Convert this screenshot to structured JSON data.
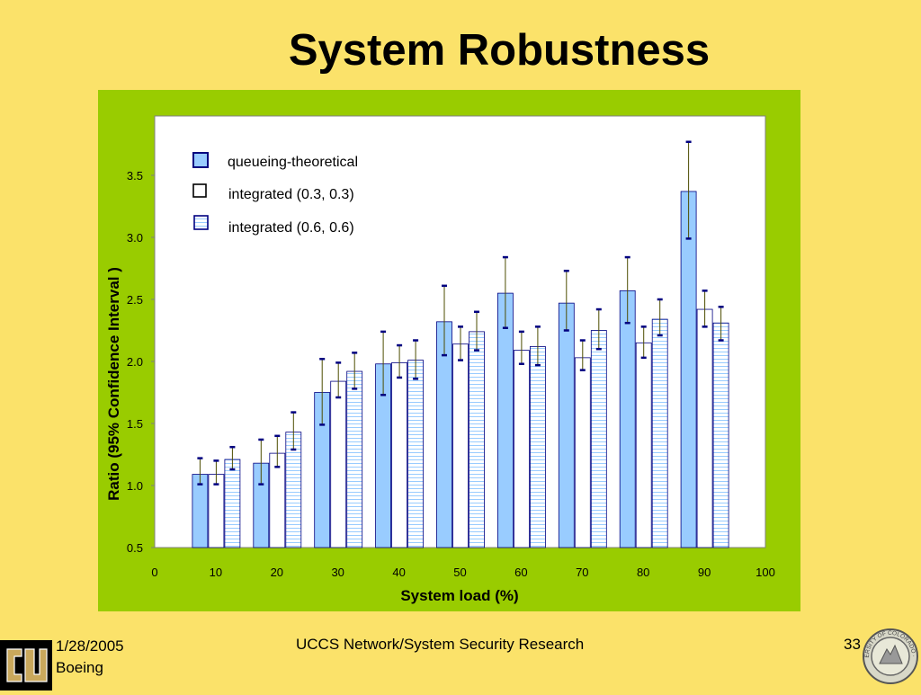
{
  "slide": {
    "title": "System Robustness",
    "footer_date": "1/28/2005",
    "footer_org": "Boeing",
    "footer_center": "UCCS Network/System Security Research",
    "page_number": "33",
    "seal_text": "UNIVERSITY OF COLORADO · 1876"
  },
  "colors": {
    "background": "#fbe26a",
    "panel": "#99cc00",
    "series_fill": [
      "#99ccff",
      "#ffffff",
      "#ffffff"
    ],
    "bar_stroke": "#000080",
    "error_bar": "#4d4d00",
    "error_cap": "#000080"
  },
  "chart_data": {
    "type": "bar",
    "xlabel": "System load (%)",
    "ylabel": "Ratio (95% Confidence Interval )",
    "ylim": [
      0.5,
      3.9
    ],
    "yticks": [
      "0.5",
      "1.0",
      "1.5",
      "2.0",
      "2.5",
      "3.0",
      "3.5"
    ],
    "xlim": [
      0,
      100
    ],
    "xticks": [
      "0",
      "10",
      "20",
      "30",
      "40",
      "50",
      "60",
      "70",
      "80",
      "90",
      "100"
    ],
    "categories": [
      10,
      20,
      30,
      40,
      50,
      60,
      70,
      80,
      90
    ],
    "series": [
      {
        "name": "queueing-theoretical",
        "values": [
          1.09,
          1.18,
          1.75,
          1.98,
          2.32,
          2.55,
          2.47,
          2.57,
          3.37
        ],
        "err_low": [
          1.01,
          1.01,
          1.49,
          1.73,
          2.05,
          2.27,
          2.25,
          2.31,
          2.99
        ],
        "err_high": [
          1.22,
          1.37,
          2.02,
          2.24,
          2.61,
          2.84,
          2.73,
          2.84,
          3.77
        ]
      },
      {
        "name": "integrated (0.3, 0.3)",
        "values": [
          1.09,
          1.26,
          1.84,
          1.99,
          2.14,
          2.09,
          2.03,
          2.15,
          2.42
        ],
        "err_low": [
          1.01,
          1.15,
          1.71,
          1.87,
          2.01,
          1.98,
          1.93,
          2.03,
          2.28
        ],
        "err_high": [
          1.2,
          1.4,
          1.99,
          2.13,
          2.28,
          2.24,
          2.17,
          2.28,
          2.57
        ]
      },
      {
        "name": "integrated (0.6, 0.6)",
        "values": [
          1.21,
          1.43,
          1.92,
          2.01,
          2.24,
          2.12,
          2.25,
          2.34,
          2.31
        ],
        "err_low": [
          1.13,
          1.29,
          1.78,
          1.86,
          2.09,
          1.97,
          2.1,
          2.21,
          2.17
        ],
        "err_high": [
          1.31,
          1.59,
          2.07,
          2.17,
          2.4,
          2.28,
          2.42,
          2.5,
          2.44
        ]
      }
    ],
    "grid": false,
    "legend_position": "top-left"
  }
}
